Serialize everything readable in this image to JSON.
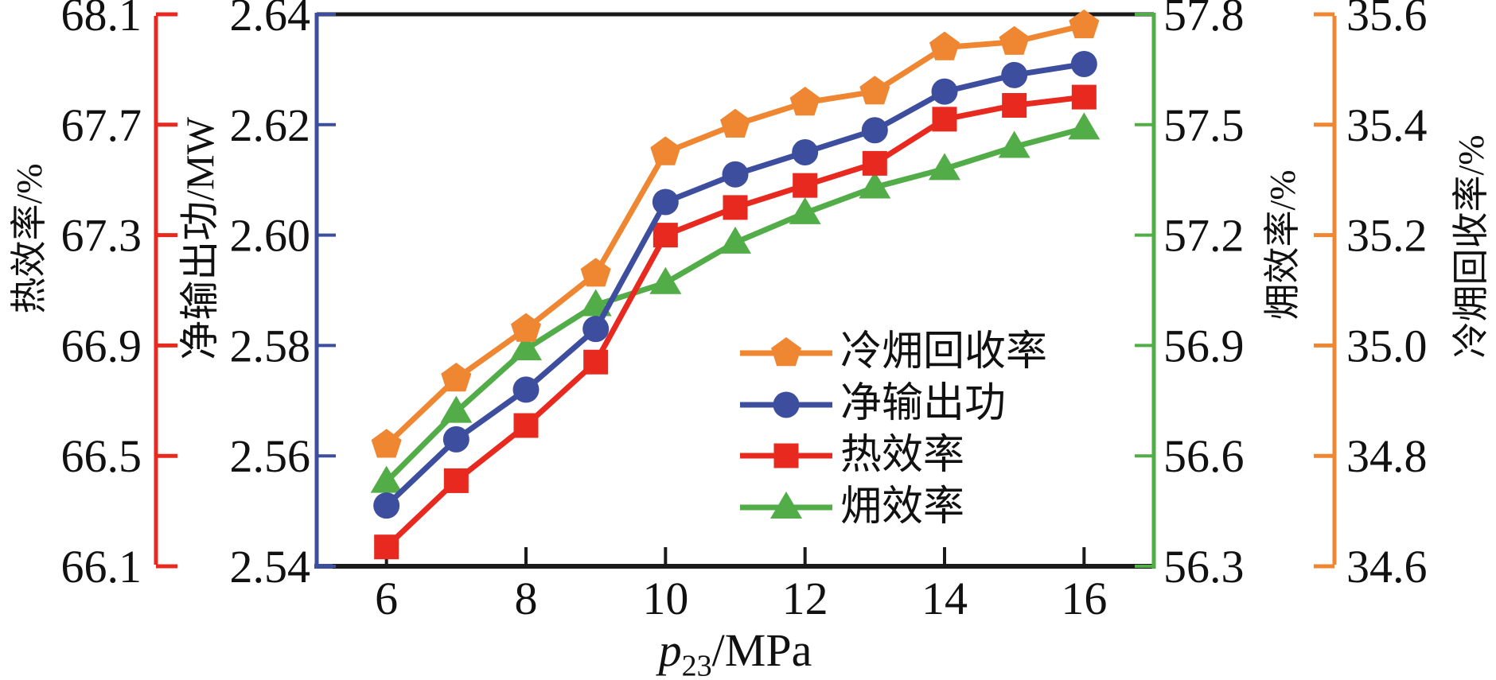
{
  "figure_type": "multi-axis line chart",
  "colors": {
    "thermal": "#E8291F",
    "power": "#3D4E9E",
    "exergy": "#52AC47",
    "cold": "#EF8632",
    "frame": "#1A1A1A"
  },
  "axes": {
    "x": {
      "title_var": "p",
      "title_sub": "23",
      "title_unit": "/MPa",
      "min": 5,
      "max": 17,
      "ticks": [
        6,
        8,
        10,
        12,
        14,
        16
      ]
    },
    "thermal": {
      "title": "热效率/%",
      "side": "left-outer",
      "min": 66.1,
      "max": 68.1,
      "tick_labels": [
        "68.1",
        "67.7",
        "67.3",
        "66.9",
        "66.5",
        "66.1"
      ]
    },
    "power": {
      "title": "净输出功/MW",
      "side": "left-inner",
      "min": 2.54,
      "max": 2.64,
      "tick_labels": [
        "2.64",
        "2.62",
        "2.60",
        "2.58",
        "2.56",
        "2.54"
      ]
    },
    "exergy": {
      "title": "㶲效率/%",
      "side": "right-inner",
      "min": 56.3,
      "max": 57.8,
      "tick_labels": [
        "57.8",
        "57.5",
        "57.2",
        "56.9",
        "56.6",
        "56.3"
      ]
    },
    "cold": {
      "title": "冷㶲回收率/%",
      "side": "right-outer",
      "min": 34.6,
      "max": 35.6,
      "tick_labels": [
        "35.6",
        "35.4",
        "35.2",
        "35.0",
        "34.8",
        "34.6"
      ]
    }
  },
  "chart_data": {
    "type": "line",
    "x": [
      6,
      7,
      8,
      9,
      10,
      11,
      12,
      13,
      14,
      15,
      16
    ],
    "xlabel": "p23/MPa",
    "grid": false,
    "legend_position": "inside lower-right",
    "series": [
      {
        "name": "冷㶲回收率",
        "axis": "cold",
        "marker": "pentagon",
        "color": "#EF8632",
        "ylim": [
          34.6,
          35.6
        ],
        "values": [
          34.82,
          34.94,
          35.03,
          35.13,
          35.35,
          35.4,
          35.44,
          35.46,
          35.54,
          35.55,
          35.58
        ]
      },
      {
        "name": "净输出功",
        "axis": "power",
        "marker": "circle",
        "color": "#3D4E9E",
        "ylim": [
          2.54,
          2.64
        ],
        "values": [
          2.551,
          2.563,
          2.572,
          2.583,
          2.606,
          2.611,
          2.615,
          2.619,
          2.626,
          2.629,
          2.631
        ]
      },
      {
        "name": "热效率",
        "axis": "thermal",
        "marker": "square",
        "color": "#E8291F",
        "ylim": [
          66.1,
          68.1
        ],
        "values": [
          66.17,
          66.41,
          66.61,
          66.84,
          67.3,
          67.4,
          67.48,
          67.56,
          67.72,
          67.77,
          67.8
        ]
      },
      {
        "name": "㶲效率",
        "axis": "exergy",
        "marker": "triangle",
        "color": "#52AC47",
        "ylim": [
          56.3,
          57.8
        ],
        "values": [
          56.53,
          56.72,
          56.89,
          57.01,
          57.07,
          57.18,
          57.26,
          57.33,
          57.38,
          57.44,
          57.49
        ]
      }
    ]
  },
  "legend": {
    "items": [
      {
        "label": "冷㶲回收率",
        "marker": "pentagon-icon",
        "color": "#EF8632"
      },
      {
        "label": "净输出功",
        "marker": "circle-icon",
        "color": "#3D4E9E"
      },
      {
        "label": "热效率",
        "marker": "square-icon",
        "color": "#E8291F"
      },
      {
        "label": "㶲效率",
        "marker": "triangle-icon",
        "color": "#52AC47"
      }
    ]
  }
}
